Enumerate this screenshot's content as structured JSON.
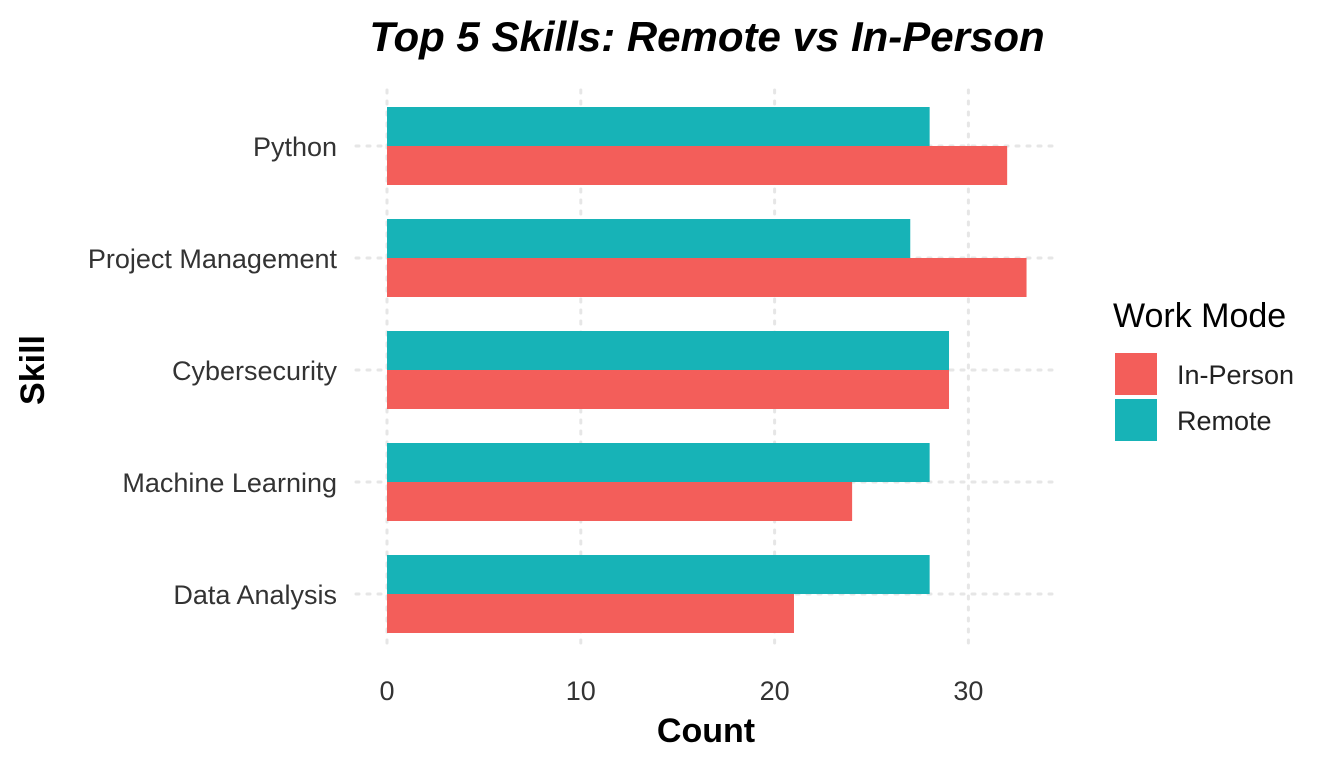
{
  "chart_data": {
    "type": "bar",
    "orientation": "horizontal",
    "title": "Top 5 Skills: Remote vs In-Person",
    "xlabel": "Count",
    "ylabel": "Skill",
    "categories": [
      "Python",
      "Project Management",
      "Cybersecurity",
      "Machine Learning",
      "Data Analysis"
    ],
    "series": [
      {
        "name": "In-Person",
        "color": "#F35E5A",
        "values": [
          32,
          33,
          29,
          24,
          21
        ]
      },
      {
        "name": "Remote",
        "color": "#17B3B7",
        "values": [
          28,
          27,
          29,
          28,
          28
        ]
      }
    ],
    "xlim": [
      0,
      35
    ],
    "xticks": [
      0,
      10,
      20,
      30
    ],
    "grid": true,
    "legend": {
      "title": "Work Mode",
      "position": "right",
      "entries": [
        "In-Person",
        "Remote"
      ]
    }
  }
}
